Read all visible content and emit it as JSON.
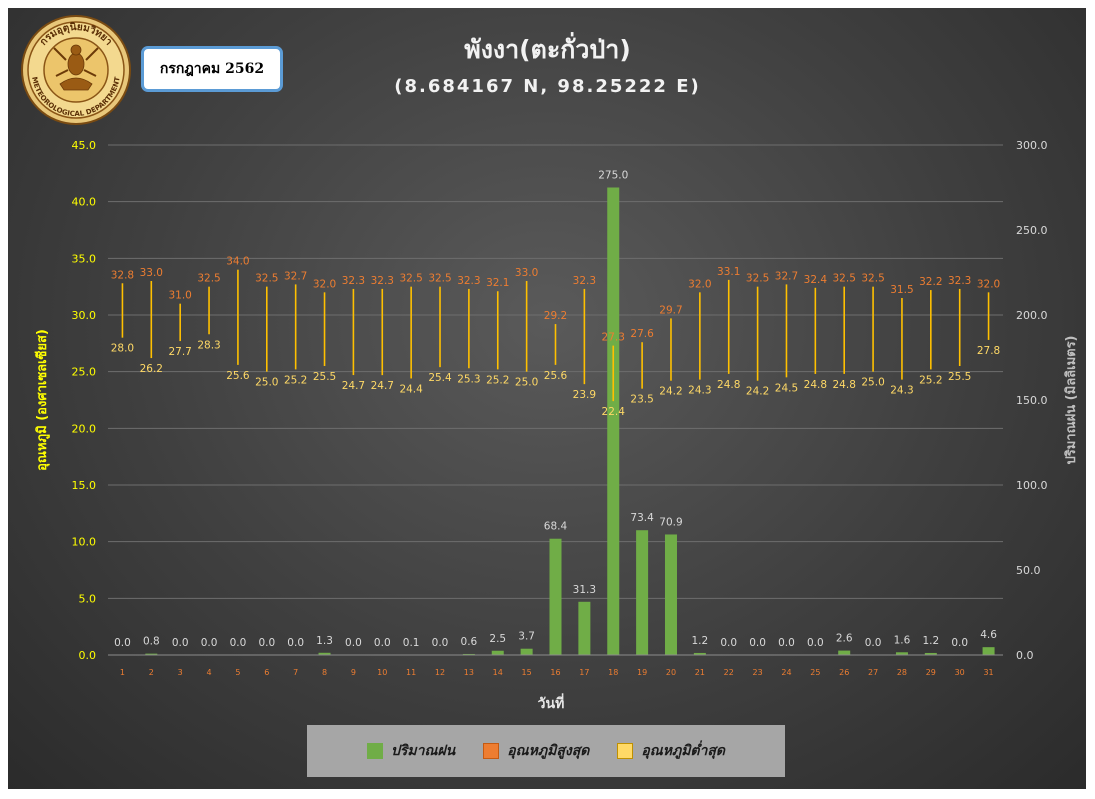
{
  "header": {
    "title": "พังงา(ตะกั่วป่า)",
    "subtitle": "(8.684167 N, 98.25222 E)",
    "month_label": "กรกฎาคม 2562",
    "logo": {
      "text_top": "กรมอุตุนิยมวิทยา",
      "text_bottom": "METEOROLOGICAL DEPARTMENT"
    }
  },
  "colors": {
    "rain": "#70ad47",
    "max_temp": "#ed7d31",
    "min_temp": "#ffd966",
    "range_line": "#ffc000",
    "left_axis_text": "#ffff00",
    "right_axis_text": "#d9d9d9"
  },
  "chart_data": {
    "type": "bar",
    "xlabel": "วันที่",
    "ylabel_left": "อุณหภูมิ (องศาเซลเซียส)",
    "ylabel_right": "ปริมาณฝน (มิลลิเมตร)",
    "ylim_left": [
      0,
      45
    ],
    "ylim_right": [
      0,
      300
    ],
    "yticks_left": [
      "0.0",
      "5.0",
      "10.0",
      "15.0",
      "20.0",
      "25.0",
      "30.0",
      "35.0",
      "40.0",
      "45.0"
    ],
    "yticks_right": [
      "0.0",
      "50.0",
      "100.0",
      "150.0",
      "200.0",
      "250.0",
      "300.0"
    ],
    "categories": [
      "1",
      "2",
      "3",
      "4",
      "5",
      "6",
      "7",
      "8",
      "9",
      "10",
      "11",
      "12",
      "13",
      "14",
      "15",
      "16",
      "17",
      "18",
      "19",
      "20",
      "21",
      "22",
      "23",
      "24",
      "25",
      "26",
      "27",
      "28",
      "29",
      "30",
      "31"
    ],
    "grid": true,
    "legend_position": "bottom",
    "series": [
      {
        "name": "ปริมาณฝน",
        "type": "bar",
        "axis": "right",
        "values": [
          0.0,
          0.8,
          0.0,
          0.0,
          0.0,
          0.0,
          0.0,
          1.3,
          0.0,
          0.0,
          0.1,
          0.0,
          0.6,
          2.5,
          3.7,
          68.4,
          31.3,
          275.0,
          73.4,
          70.9,
          1.2,
          0.0,
          0.0,
          0.0,
          0.0,
          2.6,
          0.0,
          1.6,
          1.2,
          0.0,
          4.6
        ]
      },
      {
        "name": "อุณหภูมิสูงสุด",
        "type": "point",
        "axis": "left",
        "values": [
          32.8,
          33.0,
          31.0,
          32.5,
          34.0,
          32.5,
          32.7,
          32.0,
          32.3,
          32.3,
          32.5,
          32.5,
          32.3,
          32.1,
          33.0,
          29.2,
          32.3,
          27.3,
          27.6,
          29.7,
          32.0,
          33.1,
          32.5,
          32.7,
          32.4,
          32.5,
          32.5,
          31.5,
          32.2,
          32.3,
          32.0
        ]
      },
      {
        "name": "อุณหภูมิต่ำสุด",
        "type": "point",
        "axis": "left",
        "values": [
          28.0,
          26.2,
          27.7,
          28.3,
          25.6,
          25.0,
          25.2,
          25.5,
          24.7,
          24.7,
          24.4,
          25.4,
          25.3,
          25.2,
          25.0,
          25.6,
          23.9,
          22.4,
          23.5,
          24.2,
          24.3,
          24.8,
          24.2,
          24.5,
          24.8,
          24.8,
          25.0,
          24.3,
          25.2,
          25.5,
          27.8
        ]
      }
    ]
  }
}
